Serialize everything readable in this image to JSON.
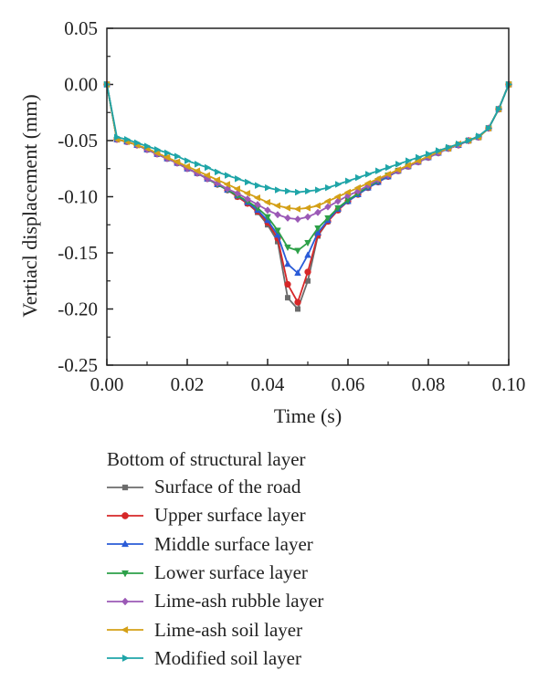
{
  "chart_data": {
    "type": "line",
    "xlabel": "Time (s)",
    "ylabel": "Vertiacl displacement (mm)",
    "xlim": [
      0.0,
      0.1
    ],
    "ylim": [
      -0.25,
      0.05
    ],
    "xticks": [
      "0.00",
      "0.02",
      "0.04",
      "0.06",
      "0.08",
      "0.10"
    ],
    "xtick_values": [
      0.0,
      0.02,
      0.04,
      0.06,
      0.08,
      0.1
    ],
    "yticks": [
      "0.05",
      "0.00",
      "-0.05",
      "-0.10",
      "-0.15",
      "-0.20",
      "-0.25"
    ],
    "ytick_values": [
      0.05,
      0.0,
      -0.05,
      -0.1,
      -0.15,
      -0.2,
      -0.25
    ],
    "legend_title": "Bottom of structural layer",
    "legend_position": "below",
    "grid": false,
    "x": [
      0.0,
      0.0025,
      0.005,
      0.0075,
      0.01,
      0.0125,
      0.015,
      0.0175,
      0.02,
      0.0225,
      0.025,
      0.0275,
      0.03,
      0.0325,
      0.035,
      0.0375,
      0.04,
      0.0425,
      0.045,
      0.0475,
      0.05,
      0.0525,
      0.055,
      0.0575,
      0.06,
      0.0625,
      0.065,
      0.0675,
      0.07,
      0.0725,
      0.075,
      0.0775,
      0.08,
      0.0825,
      0.085,
      0.0875,
      0.09,
      0.0925,
      0.095,
      0.0975,
      0.1
    ],
    "series": [
      {
        "name": "Surface of the road",
        "color": "#6b6b6b",
        "marker": "square",
        "values": [
          0.0,
          -0.049,
          -0.051,
          -0.054,
          -0.058,
          -0.062,
          -0.066,
          -0.07,
          -0.075,
          -0.079,
          -0.084,
          -0.089,
          -0.094,
          -0.1,
          -0.106,
          -0.114,
          -0.125,
          -0.14,
          -0.19,
          -0.2,
          -0.175,
          -0.135,
          -0.122,
          -0.112,
          -0.104,
          -0.098,
          -0.092,
          -0.087,
          -0.082,
          -0.077,
          -0.073,
          -0.069,
          -0.065,
          -0.061,
          -0.057,
          -0.054,
          -0.05,
          -0.047,
          -0.039,
          -0.022,
          0.0
        ]
      },
      {
        "name": "Upper surface layer",
        "color": "#d62728",
        "marker": "circle",
        "values": [
          0.0,
          -0.049,
          -0.051,
          -0.054,
          -0.058,
          -0.062,
          -0.066,
          -0.07,
          -0.075,
          -0.079,
          -0.084,
          -0.089,
          -0.094,
          -0.1,
          -0.106,
          -0.113,
          -0.123,
          -0.137,
          -0.178,
          -0.194,
          -0.167,
          -0.134,
          -0.122,
          -0.112,
          -0.104,
          -0.098,
          -0.092,
          -0.087,
          -0.082,
          -0.077,
          -0.073,
          -0.069,
          -0.065,
          -0.061,
          -0.057,
          -0.054,
          -0.05,
          -0.047,
          -0.039,
          -0.022,
          0.0
        ]
      },
      {
        "name": "Middle surface layer",
        "color": "#2a5bd7",
        "marker": "triangle-up",
        "values": [
          0.0,
          -0.049,
          -0.051,
          -0.054,
          -0.058,
          -0.062,
          -0.066,
          -0.07,
          -0.075,
          -0.079,
          -0.084,
          -0.089,
          -0.094,
          -0.099,
          -0.105,
          -0.112,
          -0.121,
          -0.134,
          -0.16,
          -0.168,
          -0.152,
          -0.132,
          -0.121,
          -0.111,
          -0.104,
          -0.098,
          -0.092,
          -0.087,
          -0.082,
          -0.077,
          -0.073,
          -0.069,
          -0.065,
          -0.061,
          -0.057,
          -0.054,
          -0.05,
          -0.047,
          -0.039,
          -0.022,
          0.0
        ]
      },
      {
        "name": "Lower surface layer",
        "color": "#2ca048",
        "marker": "triangle-down",
        "values": [
          0.0,
          -0.049,
          -0.051,
          -0.054,
          -0.058,
          -0.062,
          -0.066,
          -0.07,
          -0.075,
          -0.079,
          -0.084,
          -0.089,
          -0.094,
          -0.099,
          -0.104,
          -0.11,
          -0.118,
          -0.13,
          -0.145,
          -0.148,
          -0.141,
          -0.128,
          -0.119,
          -0.11,
          -0.103,
          -0.097,
          -0.091,
          -0.086,
          -0.081,
          -0.077,
          -0.073,
          -0.069,
          -0.065,
          -0.061,
          -0.057,
          -0.054,
          -0.05,
          -0.047,
          -0.039,
          -0.022,
          0.0
        ]
      },
      {
        "name": "Lime-ash rubble layer",
        "color": "#9b59b6",
        "marker": "diamond",
        "values": [
          0.0,
          -0.049,
          -0.051,
          -0.054,
          -0.058,
          -0.062,
          -0.066,
          -0.07,
          -0.075,
          -0.079,
          -0.084,
          -0.088,
          -0.093,
          -0.097,
          -0.102,
          -0.107,
          -0.112,
          -0.116,
          -0.119,
          -0.12,
          -0.118,
          -0.114,
          -0.109,
          -0.104,
          -0.099,
          -0.095,
          -0.09,
          -0.085,
          -0.081,
          -0.077,
          -0.073,
          -0.069,
          -0.065,
          -0.061,
          -0.057,
          -0.054,
          -0.05,
          -0.047,
          -0.039,
          -0.022,
          0.0
        ]
      },
      {
        "name": "Lime-ash soil layer",
        "color": "#d4a017",
        "marker": "triangle-left",
        "values": [
          0.0,
          -0.049,
          -0.051,
          -0.054,
          -0.057,
          -0.061,
          -0.065,
          -0.069,
          -0.073,
          -0.077,
          -0.081,
          -0.085,
          -0.089,
          -0.093,
          -0.097,
          -0.101,
          -0.105,
          -0.108,
          -0.11,
          -0.111,
          -0.11,
          -0.108,
          -0.104,
          -0.1,
          -0.096,
          -0.092,
          -0.088,
          -0.084,
          -0.08,
          -0.076,
          -0.072,
          -0.068,
          -0.064,
          -0.06,
          -0.057,
          -0.053,
          -0.05,
          -0.047,
          -0.039,
          -0.022,
          0.0
        ]
      },
      {
        "name": "Modified soil layer",
        "color": "#1fa5a8",
        "marker": "triangle-right",
        "values": [
          0.0,
          -0.047,
          -0.049,
          -0.052,
          -0.055,
          -0.058,
          -0.061,
          -0.064,
          -0.068,
          -0.071,
          -0.074,
          -0.078,
          -0.081,
          -0.084,
          -0.087,
          -0.09,
          -0.092,
          -0.094,
          -0.095,
          -0.096,
          -0.095,
          -0.094,
          -0.092,
          -0.089,
          -0.086,
          -0.083,
          -0.08,
          -0.077,
          -0.074,
          -0.071,
          -0.068,
          -0.065,
          -0.062,
          -0.059,
          -0.056,
          -0.053,
          -0.05,
          -0.046,
          -0.039,
          -0.022,
          0.0
        ]
      }
    ]
  }
}
